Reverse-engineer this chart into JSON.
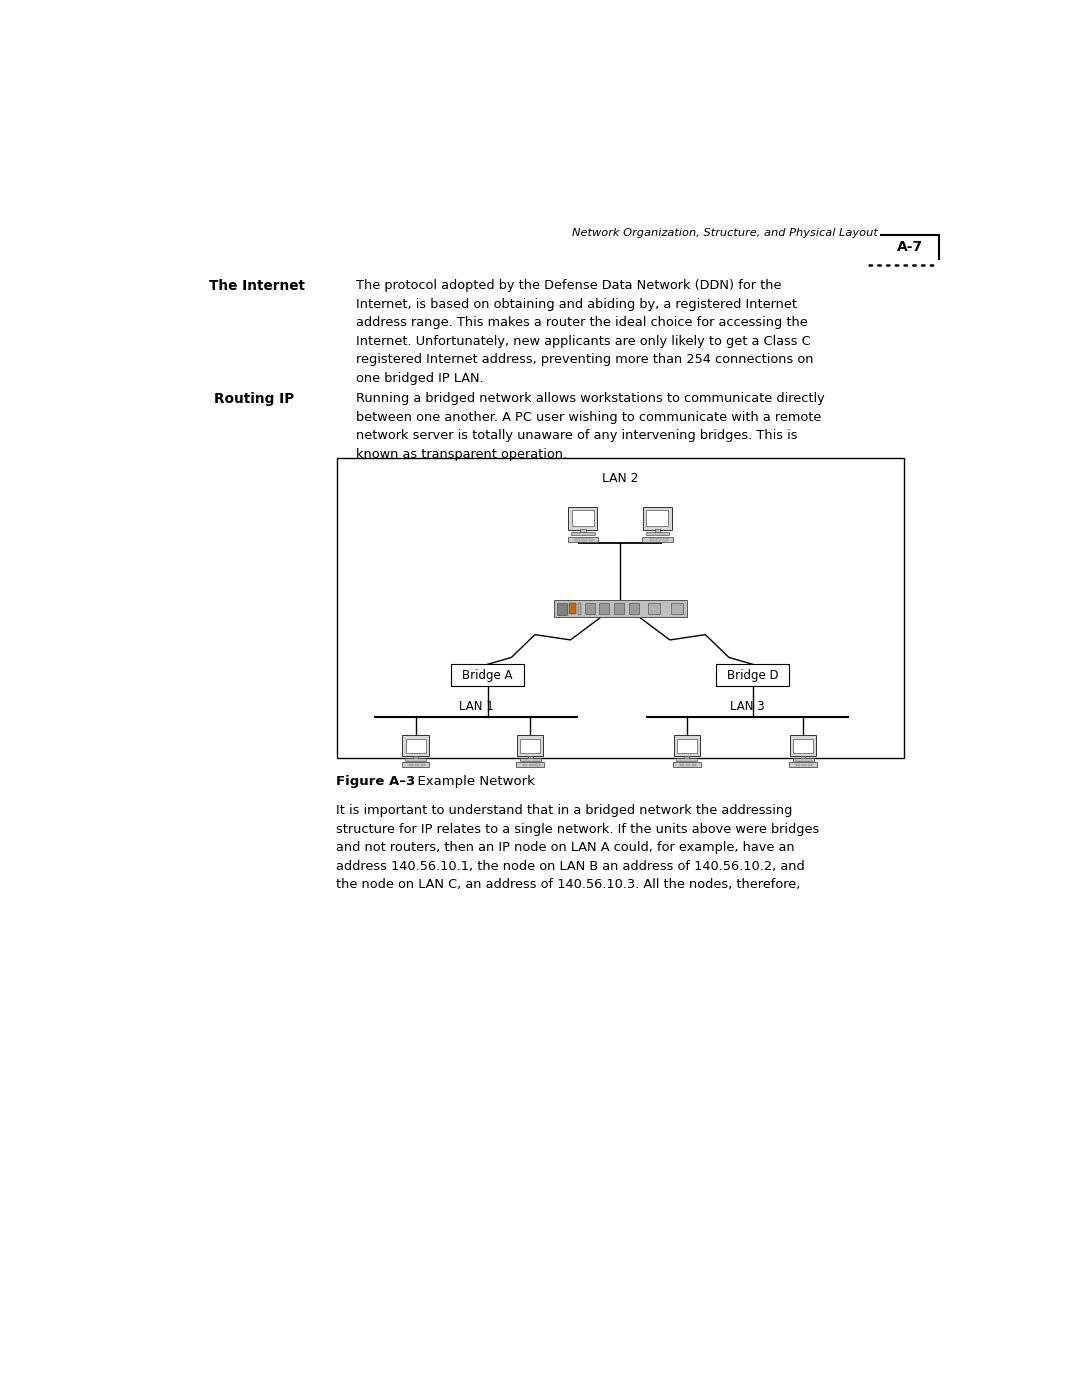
{
  "page_width": 10.8,
  "page_height": 13.97,
  "bg_color": "#ffffff",
  "header_text": "Network Organization, Structure, and Physical Layout",
  "header_page": "A-7",
  "section1_label": "The Internet",
  "section1_body": "The protocol adopted by the Defense Data Network (DDN) for the\nInternet, is based on obtaining and abiding by, a registered Internet\naddress range. This makes a router the ideal choice for accessing the\nInternet. Unfortunately, new applicants are only likely to get a Class C\nregistered Internet address, preventing more than 254 connections on\none bridged IP LAN.",
  "section2_label": "Routing IP",
  "section2_body": "Running a bridged network allows workstations to communicate directly\nbetween one another. A PC user wishing to communicate with a remote\nnetwork server is totally unaware of any intervening bridges. This is\nknown as transparent operation.",
  "figure_caption_bold": "Figure A–3",
  "figure_caption_normal": "  Example Network",
  "body_text": "It is important to understand that in a bridged network the addressing\nstructure for IP relates to a single network. If the units above were bridges\nand not routers, then an IP node on LAN A could, for example, have an\naddress 140.56.10.1, the node on LAN B an address of 140.56.10.2, and\nthe node on LAN C, an address of 140.56.10.3. All the nodes, therefore,",
  "text_color": "#000000",
  "label_indent": 0.95,
  "body_indent": 2.85,
  "dots_color": "#000000"
}
